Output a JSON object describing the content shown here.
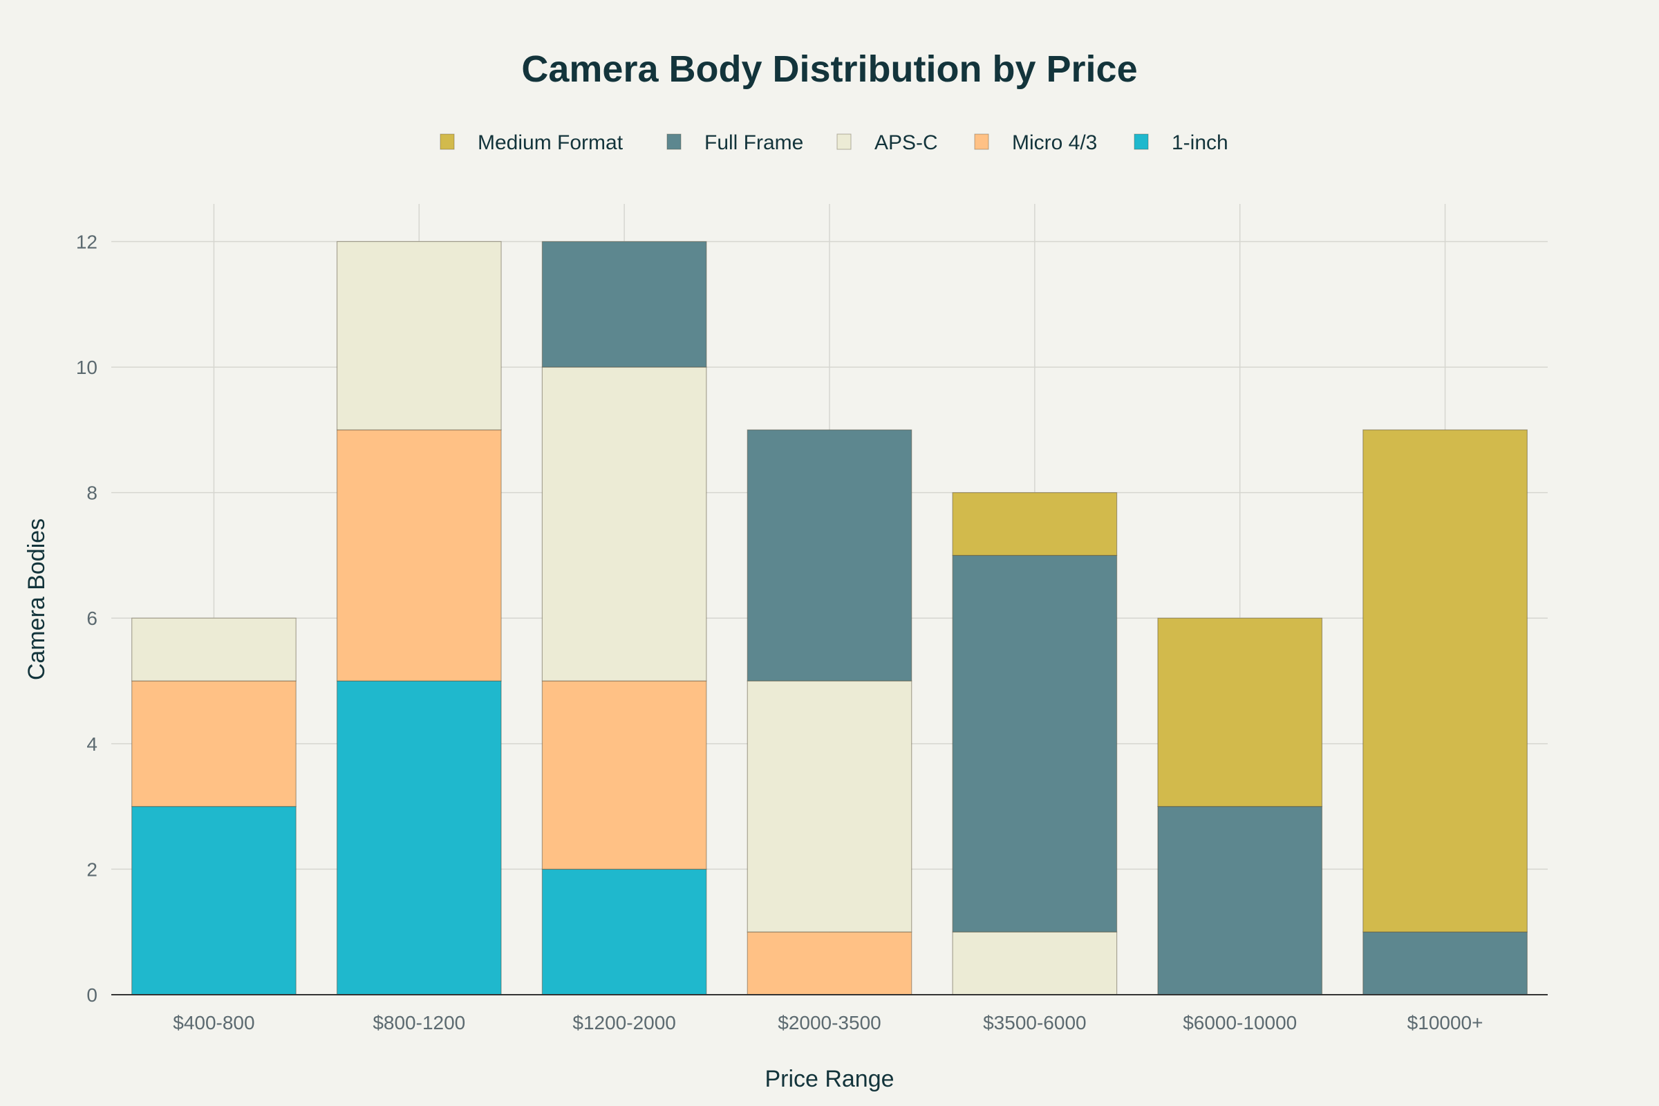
{
  "chart_data": {
    "type": "bar",
    "stacked": true,
    "title": "Camera Body Distribution by Price",
    "xlabel": "Price Range",
    "ylabel": "Camera Bodies",
    "categories": [
      "$400-800",
      "$800-1200",
      "$1200-2000",
      "$2000-3500",
      "$3500-6000",
      "$6000-10000",
      "$10000+"
    ],
    "ylim": [
      0,
      12.6
    ],
    "yticks": [
      0,
      2,
      4,
      6,
      8,
      10,
      12
    ],
    "grid": true,
    "legend_placement": "top-center",
    "series": [
      {
        "name": "1-inch",
        "color": "#1fb8cd",
        "values": [
          3,
          5,
          2,
          0,
          0,
          0,
          0
        ]
      },
      {
        "name": "Micro 4/3",
        "color": "#ffc185",
        "values": [
          2,
          4,
          3,
          1,
          0,
          0,
          0
        ]
      },
      {
        "name": "APS-C",
        "color": "#eceBd5",
        "values": [
          1,
          3,
          5,
          4,
          1,
          0,
          0
        ]
      },
      {
        "name": "Full Frame",
        "color": "#5d878f",
        "values": [
          0,
          0,
          2,
          4,
          6,
          3,
          1
        ]
      },
      {
        "name": "Medium Format",
        "color": "#d2ba4c",
        "values": [
          0,
          0,
          0,
          0,
          1,
          3,
          8
        ]
      }
    ],
    "legend_order": [
      "Medium Format",
      "Full Frame",
      "APS-C",
      "Micro 4/3",
      "1-inch"
    ]
  }
}
